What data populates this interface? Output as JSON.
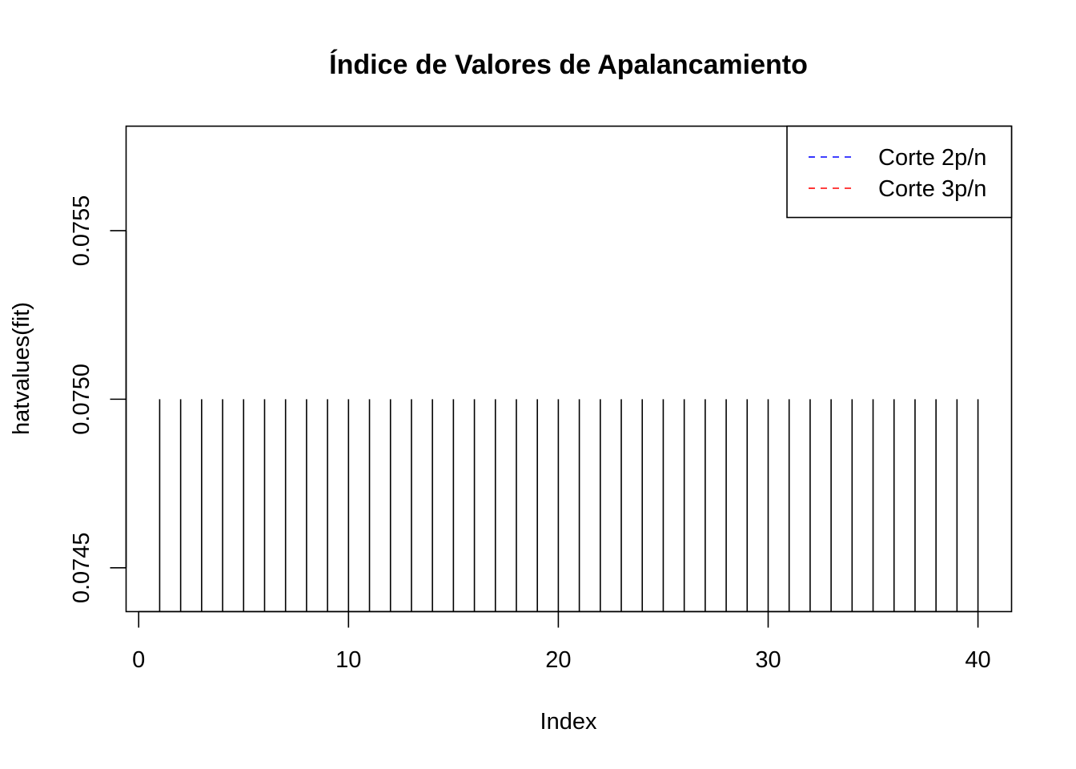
{
  "chart_data": {
    "type": "bar",
    "title": "Índice de Valores de Apalancamiento",
    "xlabel": "Index",
    "ylabel": "hatvalues(fit)",
    "x": [
      1,
      2,
      3,
      4,
      5,
      6,
      7,
      8,
      9,
      10,
      11,
      12,
      13,
      14,
      15,
      16,
      17,
      18,
      19,
      20,
      21,
      22,
      23,
      24,
      25,
      26,
      27,
      28,
      29,
      30,
      31,
      32,
      33,
      34,
      35,
      36,
      37,
      38,
      39,
      40
    ],
    "values": [
      0.075,
      0.075,
      0.075,
      0.075,
      0.075,
      0.075,
      0.075,
      0.075,
      0.075,
      0.075,
      0.075,
      0.075,
      0.075,
      0.075,
      0.075,
      0.075,
      0.075,
      0.075,
      0.075,
      0.075,
      0.075,
      0.075,
      0.075,
      0.075,
      0.075,
      0.075,
      0.075,
      0.075,
      0.075,
      0.075,
      0.075,
      0.075,
      0.075,
      0.075,
      0.075,
      0.075,
      0.075,
      0.075,
      0.075,
      0.075
    ],
    "xlim": [
      -0.6,
      41.6
    ],
    "ylim": [
      0.07437,
      0.07581
    ],
    "xticks": [
      0,
      10,
      20,
      30,
      40
    ],
    "xtick_labels": [
      "0",
      "10",
      "20",
      "30",
      "40"
    ],
    "yticks": [
      0.0745,
      0.075,
      0.0755
    ],
    "ytick_labels": [
      "0.0745",
      "0.0750",
      "0.0755"
    ],
    "grid": false,
    "legend": {
      "position": "top-right",
      "entries": [
        {
          "label": "Corte 2p/n",
          "color": "#0000ff",
          "linestyle": "dashed"
        },
        {
          "label": "Corte 3p/n",
          "color": "#ff0000",
          "linestyle": "dashed"
        }
      ]
    }
  }
}
